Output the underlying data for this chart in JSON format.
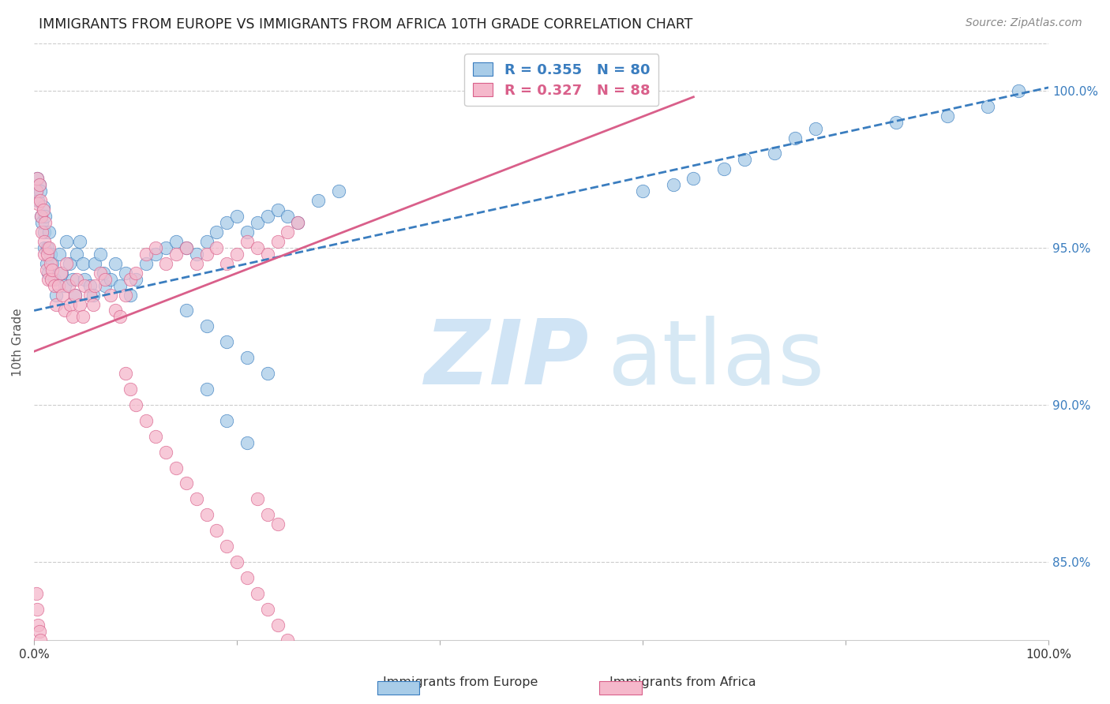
{
  "title": "IMMIGRANTS FROM EUROPE VS IMMIGRANTS FROM AFRICA 10TH GRADE CORRELATION CHART",
  "source": "Source: ZipAtlas.com",
  "ylabel": "10th Grade",
  "ytick_labels": [
    "85.0%",
    "90.0%",
    "95.0%",
    "100.0%"
  ],
  "ytick_values": [
    0.85,
    0.9,
    0.95,
    1.0
  ],
  "xlim": [
    0.0,
    1.0
  ],
  "ylim": [
    0.825,
    1.015
  ],
  "legend_label1": "Immigrants from Europe",
  "legend_label2": "Immigrants from Africa",
  "R1": 0.355,
  "N1": 80,
  "R2": 0.327,
  "N2": 88,
  "color_europe": "#a8cce8",
  "color_africa": "#f5b8cb",
  "color_trend_europe": "#3a7dbf",
  "color_trend_africa": "#d95f8a",
  "background_color": "#ffffff",
  "trend_europe_x0": 0.0,
  "trend_europe_y0": 0.93,
  "trend_europe_x1": 1.0,
  "trend_europe_y1": 1.001,
  "trend_africa_x0": 0.0,
  "trend_africa_y0": 0.917,
  "trend_africa_x1": 0.65,
  "trend_africa_y1": 0.998,
  "europe_x": [
    0.002,
    0.003,
    0.004,
    0.005,
    0.006,
    0.007,
    0.008,
    0.009,
    0.01,
    0.01,
    0.011,
    0.012,
    0.013,
    0.014,
    0.015,
    0.016,
    0.018,
    0.02,
    0.022,
    0.025,
    0.027,
    0.03,
    0.032,
    0.035,
    0.038,
    0.04,
    0.042,
    0.045,
    0.048,
    0.05,
    0.055,
    0.058,
    0.06,
    0.065,
    0.068,
    0.07,
    0.075,
    0.08,
    0.085,
    0.09,
    0.095,
    0.1,
    0.11,
    0.12,
    0.13,
    0.14,
    0.15,
    0.16,
    0.17,
    0.18,
    0.19,
    0.2,
    0.21,
    0.22,
    0.23,
    0.24,
    0.25,
    0.26,
    0.28,
    0.3,
    0.15,
    0.17,
    0.19,
    0.21,
    0.23,
    0.17,
    0.19,
    0.21,
    0.6,
    0.63,
    0.65,
    0.68,
    0.7,
    0.73,
    0.75,
    0.77,
    0.85,
    0.9,
    0.94,
    0.97
  ],
  "europe_y": [
    0.968,
    0.972,
    0.965,
    0.97,
    0.968,
    0.96,
    0.958,
    0.963,
    0.955,
    0.95,
    0.96,
    0.945,
    0.95,
    0.942,
    0.955,
    0.948,
    0.945,
    0.94,
    0.935,
    0.948,
    0.942,
    0.938,
    0.952,
    0.945,
    0.94,
    0.935,
    0.948,
    0.952,
    0.945,
    0.94,
    0.938,
    0.935,
    0.945,
    0.948,
    0.942,
    0.938,
    0.94,
    0.945,
    0.938,
    0.942,
    0.935,
    0.94,
    0.945,
    0.948,
    0.95,
    0.952,
    0.95,
    0.948,
    0.952,
    0.955,
    0.958,
    0.96,
    0.955,
    0.958,
    0.96,
    0.962,
    0.96,
    0.958,
    0.965,
    0.968,
    0.93,
    0.925,
    0.92,
    0.915,
    0.91,
    0.905,
    0.895,
    0.888,
    0.968,
    0.97,
    0.972,
    0.975,
    0.978,
    0.98,
    0.985,
    0.988,
    0.99,
    0.992,
    0.995,
    1.0
  ],
  "africa_x": [
    0.002,
    0.003,
    0.004,
    0.005,
    0.006,
    0.007,
    0.008,
    0.009,
    0.01,
    0.01,
    0.011,
    0.012,
    0.013,
    0.014,
    0.015,
    0.016,
    0.017,
    0.018,
    0.02,
    0.022,
    0.024,
    0.026,
    0.028,
    0.03,
    0.032,
    0.034,
    0.036,
    0.038,
    0.04,
    0.042,
    0.045,
    0.048,
    0.05,
    0.055,
    0.058,
    0.06,
    0.065,
    0.07,
    0.075,
    0.08,
    0.085,
    0.09,
    0.095,
    0.1,
    0.11,
    0.12,
    0.13,
    0.14,
    0.15,
    0.16,
    0.17,
    0.18,
    0.19,
    0.2,
    0.21,
    0.22,
    0.23,
    0.24,
    0.25,
    0.26,
    0.09,
    0.095,
    0.1,
    0.11,
    0.12,
    0.13,
    0.14,
    0.15,
    0.16,
    0.17,
    0.18,
    0.19,
    0.2,
    0.21,
    0.22,
    0.23,
    0.24,
    0.25,
    0.002,
    0.003,
    0.004,
    0.005,
    0.006,
    0.007,
    0.008,
    0.22,
    0.23,
    0.24
  ],
  "africa_y": [
    0.968,
    0.972,
    0.964,
    0.97,
    0.965,
    0.96,
    0.955,
    0.962,
    0.952,
    0.948,
    0.958,
    0.943,
    0.948,
    0.94,
    0.95,
    0.945,
    0.94,
    0.943,
    0.938,
    0.932,
    0.938,
    0.942,
    0.935,
    0.93,
    0.945,
    0.938,
    0.932,
    0.928,
    0.935,
    0.94,
    0.932,
    0.928,
    0.938,
    0.935,
    0.932,
    0.938,
    0.942,
    0.94,
    0.935,
    0.93,
    0.928,
    0.935,
    0.94,
    0.942,
    0.948,
    0.95,
    0.945,
    0.948,
    0.95,
    0.945,
    0.948,
    0.95,
    0.945,
    0.948,
    0.952,
    0.95,
    0.948,
    0.952,
    0.955,
    0.958,
    0.91,
    0.905,
    0.9,
    0.895,
    0.89,
    0.885,
    0.88,
    0.875,
    0.87,
    0.865,
    0.86,
    0.855,
    0.85,
    0.845,
    0.84,
    0.835,
    0.83,
    0.825,
    0.84,
    0.835,
    0.83,
    0.828,
    0.825,
    0.82,
    0.818,
    0.87,
    0.865,
    0.862
  ]
}
